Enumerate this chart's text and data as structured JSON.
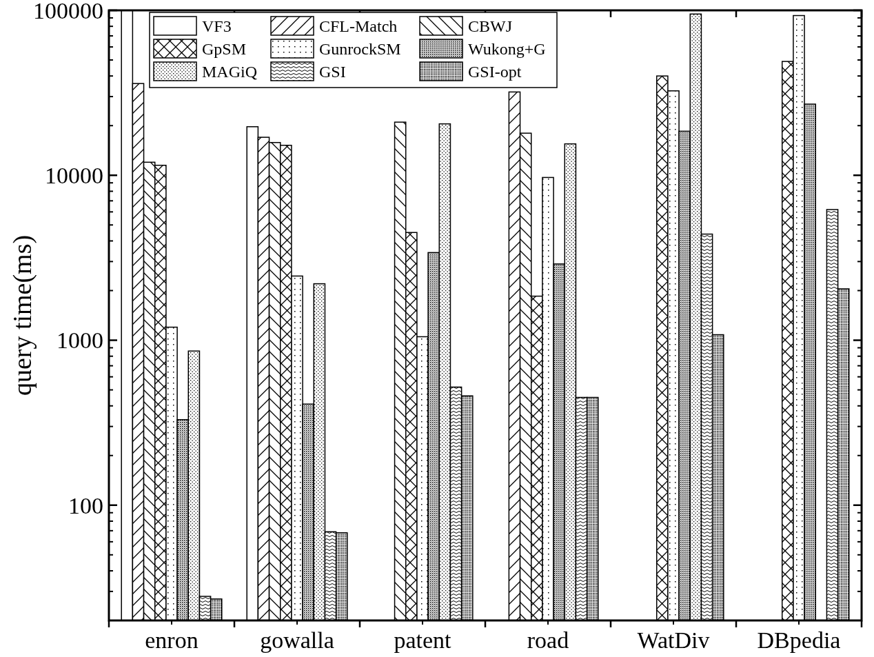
{
  "chart_data": {
    "type": "bar",
    "ylabel": "query time(ms)",
    "log": true,
    "legend": "top left",
    "grid": false,
    "categories": [
      "enron",
      "gowalla",
      "patent",
      "road",
      "WatDiv",
      "DBpedia"
    ],
    "ylim": [
      20,
      100000
    ],
    "yticks": [
      100,
      1000,
      10000,
      100000
    ],
    "series": [
      {
        "name": "VF3",
        "color": "#000000",
        "values": [
          100000,
          19700,
          null,
          null,
          null,
          null
        ]
      },
      {
        "name": "CFL-Match",
        "color": "#000000",
        "values": [
          36000,
          17000,
          null,
          32000,
          null,
          null
        ]
      },
      {
        "name": "CBWJ",
        "color": "#000000",
        "values": [
          12000,
          15800,
          21000,
          18000,
          null,
          null
        ]
      },
      {
        "name": "GpSM",
        "color": "#000000",
        "values": [
          11500,
          15200,
          4500,
          1850,
          40000,
          49000
        ]
      },
      {
        "name": "GunrockSM",
        "color": "#000000",
        "values": [
          1200,
          2450,
          1050,
          9700,
          32500,
          93000
        ]
      },
      {
        "name": "Wukong+G",
        "color": "#000000",
        "values": [
          330,
          410,
          3400,
          2900,
          18500,
          27000
        ]
      },
      {
        "name": "MAGiQ",
        "color": "#000000",
        "values": [
          860,
          2200,
          20500,
          15500,
          95000,
          null
        ]
      },
      {
        "name": "GSI",
        "color": "#000000",
        "values": [
          28,
          69,
          520,
          450,
          4400,
          6200
        ]
      },
      {
        "name": "GSI-opt",
        "color": "#000000",
        "values": [
          27,
          68,
          460,
          450,
          1080,
          2050
        ]
      }
    ]
  }
}
